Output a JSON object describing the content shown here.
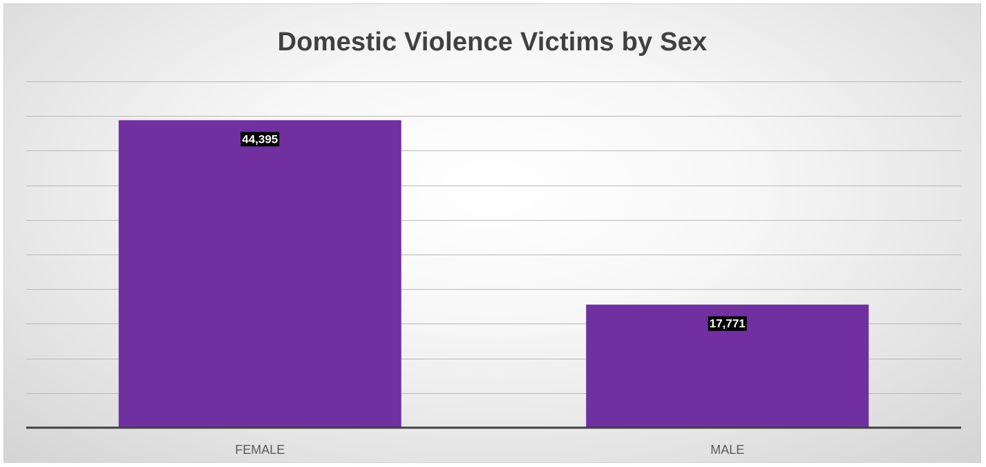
{
  "chart_data": {
    "type": "bar",
    "title": "Domestic Violence Victims by Sex",
    "categories": [
      "FEMALE",
      "MALE"
    ],
    "values": [
      44395,
      17771
    ],
    "data_labels": [
      "44,395",
      "17,771"
    ],
    "ylim": [
      0,
      50000
    ],
    "grid": true,
    "legend": "none",
    "xlabel": "",
    "ylabel": "",
    "colors": {
      "bar": "#7030a0",
      "data_label_background": "#000000",
      "data_label_text": "#ffffff",
      "title": "#404040"
    }
  }
}
